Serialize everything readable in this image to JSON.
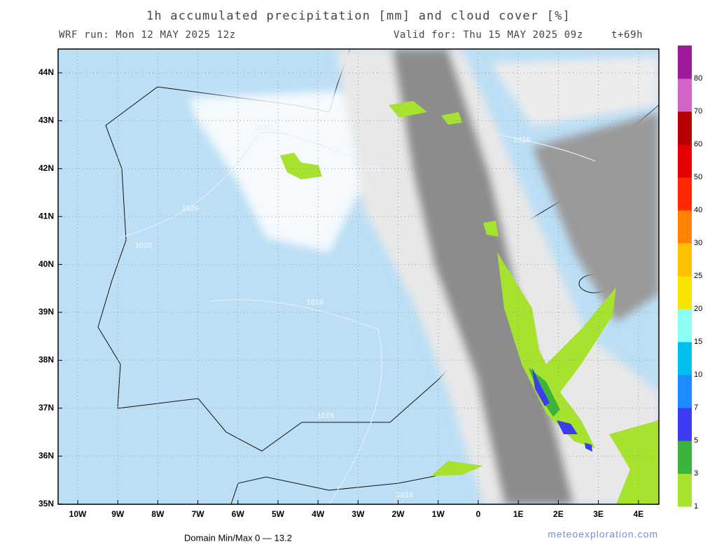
{
  "header": {
    "title": "1h accumulated precipitation [mm] and cloud cover [%]",
    "run": "WRF run: Mon 12 MAY 2025 12z",
    "valid": "Valid for: Thu 15 MAY 2025 09z",
    "lead": "t+69h"
  },
  "map": {
    "lat_labels": [
      "44N",
      "43N",
      "42N",
      "41N",
      "40N",
      "39N",
      "38N",
      "37N",
      "36N",
      "35N"
    ],
    "lon_labels": [
      "10W",
      "9W",
      "8W",
      "7W",
      "6W",
      "5W",
      "4W",
      "3W",
      "2W",
      "1W",
      "0",
      "1E",
      "2E",
      "3E",
      "4E"
    ],
    "isobar_labels": [
      "1020",
      "1020",
      "1020",
      "1020",
      "1016",
      "1016",
      "1016",
      "1016"
    ]
  },
  "colorbar": {
    "labels": [
      1,
      3,
      5,
      7,
      10,
      15,
      20,
      25,
      30,
      40,
      50,
      60,
      70,
      80
    ],
    "colors": [
      "#a6e22e",
      "#3cb43c",
      "#3c3cf0",
      "#1e8cff",
      "#00bef0",
      "#8cfff4",
      "#f8e400",
      "#ffc000",
      "#ff8200",
      "#ff2800",
      "#e60000",
      "#b40000",
      "#d264c8",
      "#a0189c"
    ]
  },
  "footer": {
    "minmax": "Domain Min/Max 0 — 13.2",
    "credit": "meteoexploration.com"
  }
}
